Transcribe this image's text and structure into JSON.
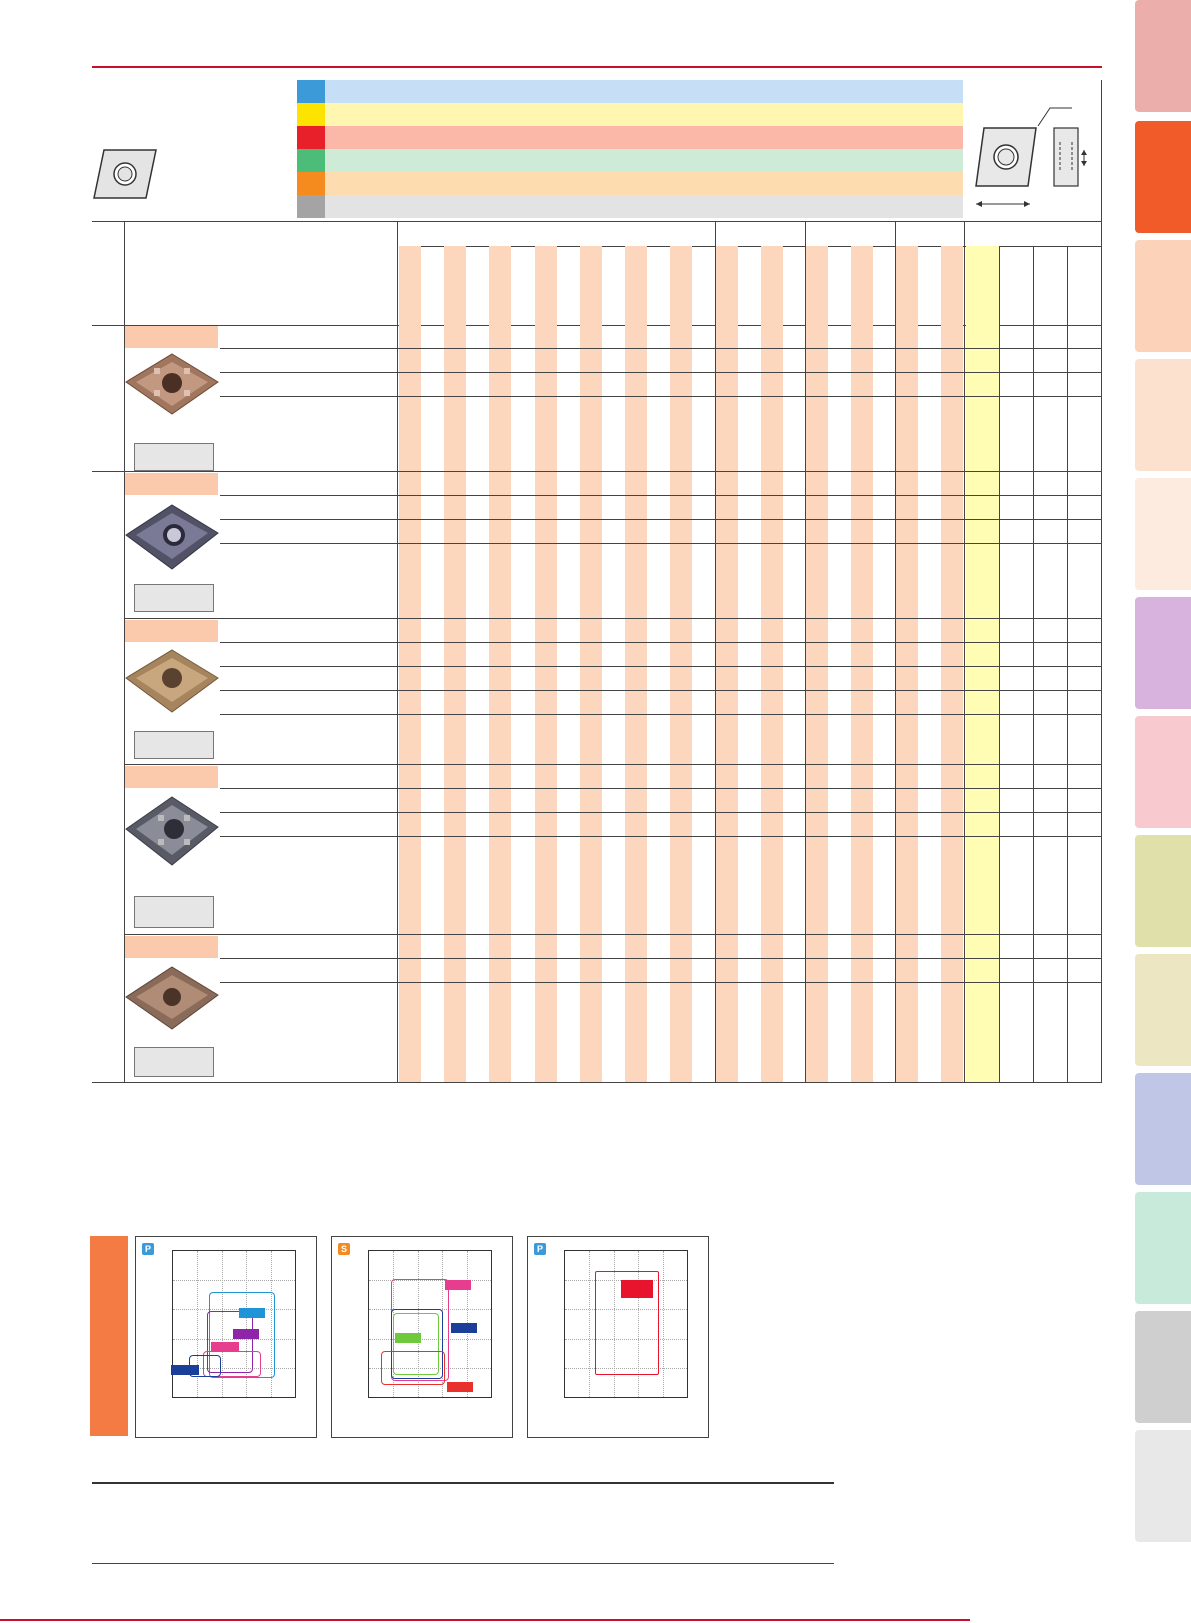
{
  "iso_colors": {
    "P": "#3d9ad8",
    "M": "#fde300",
    "K": "#e8202a",
    "N": "#4cbd79",
    "S": "#f58a1f",
    "H": "#a4a4a4"
  },
  "iso_band_colors": [
    "#c6dff6",
    "#fff6b0",
    "#fbb8a8",
    "#cdebd7",
    "#fddcb0",
    "#e3e3e3"
  ],
  "stripe_color": "#fcd7bd",
  "accent_color": "#c8102e",
  "section_bar_color": "#f47c44",
  "side_tabs": [
    {
      "color": "#ecaeaa",
      "name": "side-tab-1"
    },
    {
      "color": "#f15a29",
      "name": "side-tab-2"
    },
    {
      "color": "#fcd2b9",
      "name": "side-tab-3"
    },
    {
      "color": "#fde1cf",
      "name": "side-tab-4"
    },
    {
      "color": "#fdebdf",
      "name": "side-tab-5"
    },
    {
      "color": "#d7b3dd",
      "name": "side-tab-6"
    },
    {
      "color": "#f9c9d0",
      "name": "side-tab-7"
    },
    {
      "color": "#e0e0aa",
      "name": "side-tab-8"
    },
    {
      "color": "#ece6c3",
      "name": "side-tab-9"
    },
    {
      "color": "#bfc6e6",
      "name": "side-tab-10"
    },
    {
      "color": "#c7eadb",
      "name": "side-tab-11"
    },
    {
      "color": "#cfcfcf",
      "name": "side-tab-12"
    },
    {
      "color": "#e8e8e8",
      "name": "side-tab-13"
    }
  ],
  "charts": [
    {
      "badge": "P",
      "badge_color": "#3d9ad8",
      "tags": [
        "#1f95d7",
        "#8e24a8",
        "#e63d8e",
        "#1b3e9a"
      ]
    },
    {
      "badge": "S",
      "badge_color": "#f58a1f",
      "tags": [
        "#e63d8e",
        "#1b3e9a",
        "#6fc93c",
        "#e8302c"
      ]
    },
    {
      "badge": "P",
      "badge_color": "#3d9ad8",
      "tags": [
        "#e8142e"
      ]
    }
  ],
  "icons": {
    "insert_outline": "rhombic-insert-icon",
    "insert_dimension": "insert-dimension-drawing-icon"
  }
}
